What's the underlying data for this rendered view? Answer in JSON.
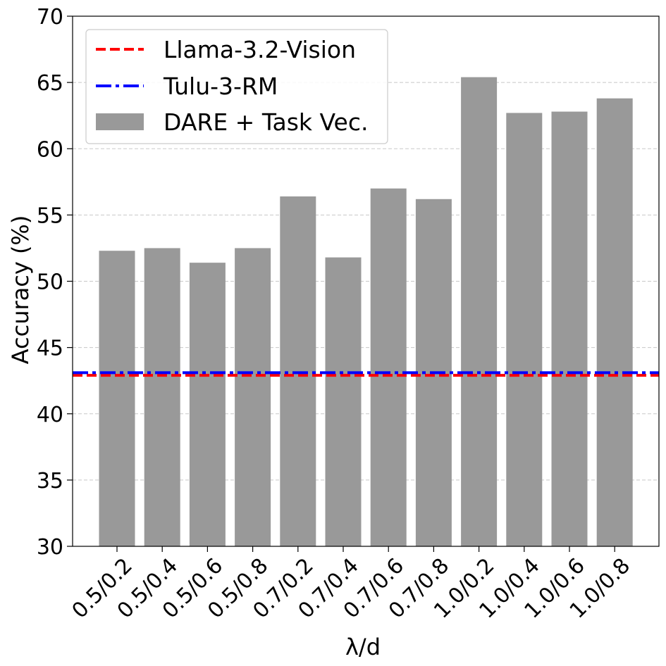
{
  "chart_data": {
    "type": "bar",
    "xlabel": "λ/d",
    "ylabel": "Accuracy (%)",
    "ylim": [
      30,
      70
    ],
    "yticks": [
      30,
      35,
      40,
      45,
      50,
      55,
      60,
      65,
      70
    ],
    "grid": "horizontal dashed",
    "legend_position": "top-left",
    "categories": [
      "0.5/0.2",
      "0.5/0.4",
      "0.5/0.6",
      "0.5/0.8",
      "0.7/0.2",
      "0.7/0.4",
      "0.7/0.6",
      "0.7/0.8",
      "1.0/0.2",
      "1.0/0.4",
      "1.0/0.6",
      "1.0/0.8"
    ],
    "series": [
      {
        "name": "DARE + Task Vec.",
        "kind": "bar",
        "color": "#999999",
        "values": [
          52.3,
          52.5,
          51.4,
          52.5,
          56.4,
          51.8,
          57.0,
          56.2,
          65.4,
          62.7,
          62.8,
          63.8
        ]
      }
    ],
    "reference_lines": [
      {
        "name": "Llama-3.2-Vision",
        "value": 42.9,
        "color": "#ff0000",
        "style": "dashed"
      },
      {
        "name": "Tulu-3-RM",
        "value": 43.1,
        "color": "#0000ff",
        "style": "dashdot"
      }
    ]
  }
}
